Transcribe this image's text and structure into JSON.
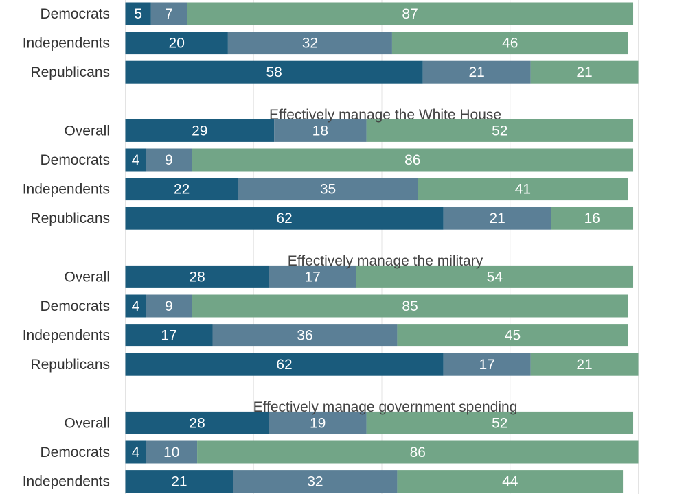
{
  "chart_data": {
    "type": "bar",
    "orientation": "horizontal",
    "stacked": true,
    "xlim": [
      0,
      100
    ],
    "grid": true,
    "legend": "none",
    "series_colors": [
      "#1a5b7c",
      "#5b7f96",
      "#72a587"
    ],
    "groups": [
      {
        "title": "",
        "rows": [
          {
            "label": "Democrats",
            "values": [
              5,
              7,
              87
            ]
          },
          {
            "label": "Independents",
            "values": [
              20,
              32,
              46
            ]
          },
          {
            "label": "Republicans",
            "values": [
              58,
              21,
              21
            ]
          }
        ]
      },
      {
        "title": "Effectively manage the White House",
        "rows": [
          {
            "label": "Overall",
            "values": [
              29,
              18,
              52
            ]
          },
          {
            "label": "Democrats",
            "values": [
              4,
              9,
              86
            ]
          },
          {
            "label": "Independents",
            "values": [
              22,
              35,
              41
            ]
          },
          {
            "label": "Republicans",
            "values": [
              62,
              21,
              16
            ]
          }
        ]
      },
      {
        "title": "Effectively manage the military",
        "rows": [
          {
            "label": "Overall",
            "values": [
              28,
              17,
              54
            ]
          },
          {
            "label": "Democrats",
            "values": [
              4,
              9,
              85
            ]
          },
          {
            "label": "Independents",
            "values": [
              17,
              36,
              45
            ]
          },
          {
            "label": "Republicans",
            "values": [
              62,
              17,
              21
            ]
          }
        ]
      },
      {
        "title": "Effectively manage government spending",
        "rows": [
          {
            "label": "Overall",
            "values": [
              28,
              19,
              52
            ]
          },
          {
            "label": "Democrats",
            "values": [
              4,
              10,
              86
            ]
          },
          {
            "label": "Independents",
            "values": [
              21,
              32,
              44
            ]
          }
        ]
      }
    ]
  }
}
